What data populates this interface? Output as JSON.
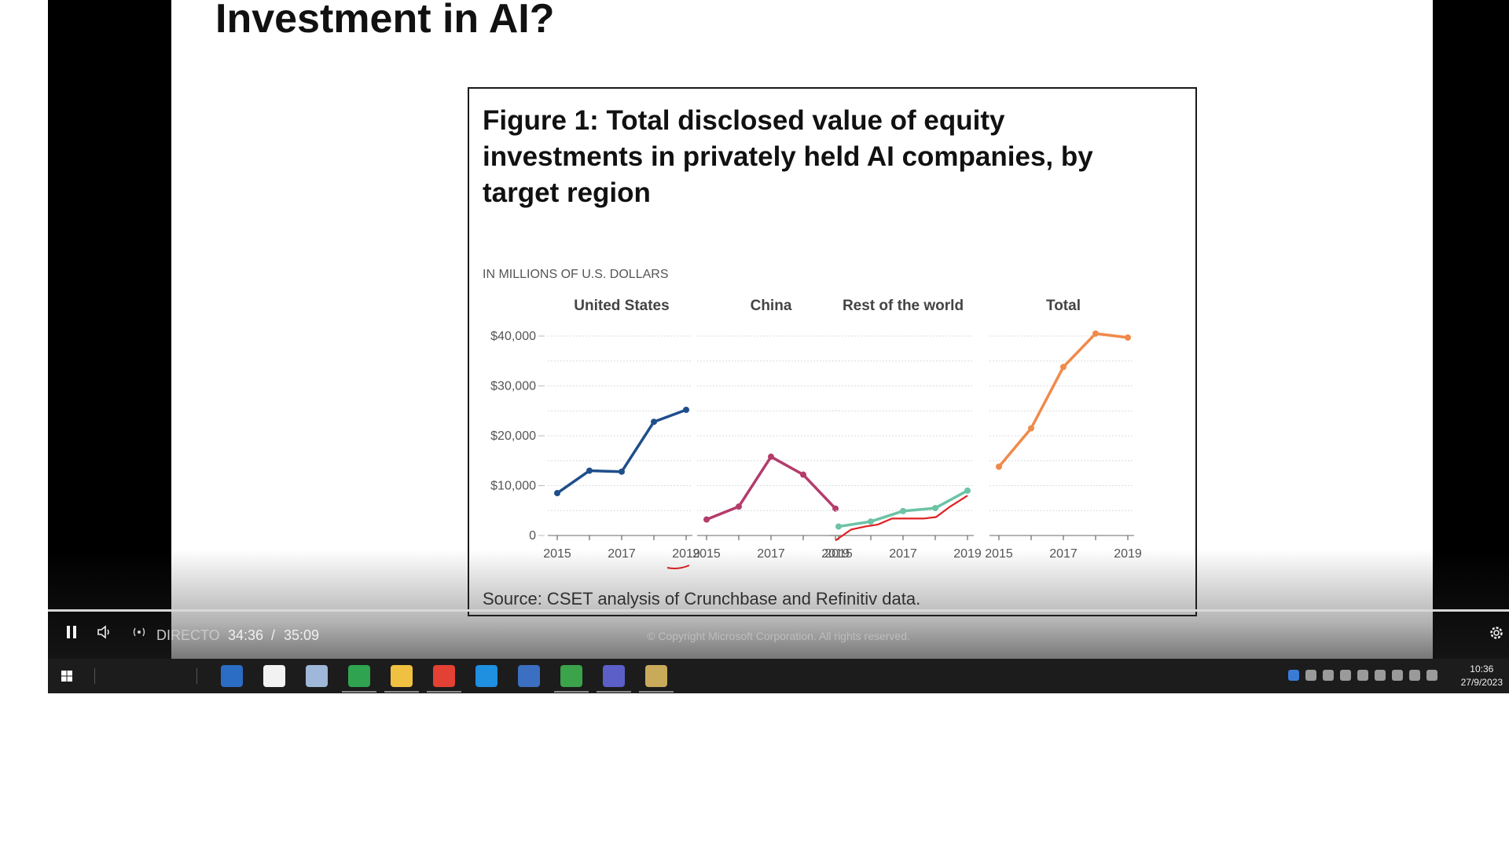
{
  "slide": {
    "title": "Investment in AI?",
    "figure_title": "Figure 1: Total disclosed value of equity investments in privately held AI companies, by target region",
    "source": "Source: CSET analysis of Crunchbase and Refinitiv data."
  },
  "chart_data": {
    "type": "line",
    "subtitle": "IN MILLIONS OF U.S. DOLLARS",
    "ylim": [
      0,
      40000
    ],
    "y_ticks": [
      "$40,000",
      "$30,000",
      "$20,000",
      "$10,000",
      "0"
    ],
    "y_tick_values": [
      40000,
      30000,
      20000,
      10000,
      0
    ],
    "x_tick_labels": [
      "2015",
      "2017",
      "2019"
    ],
    "x": [
      2015,
      2016,
      2017,
      2018,
      2019
    ],
    "grid": true,
    "panels": [
      {
        "name": "United States",
        "color": "#1f4e8c",
        "values": [
          8500,
          13000,
          12800,
          22800,
          25200
        ]
      },
      {
        "name": "China",
        "color": "#b43c6b",
        "values": [
          3200,
          5800,
          15800,
          12200,
          5400
        ]
      },
      {
        "name": "Rest of the world",
        "color": "#6cc3a5",
        "values": [
          1800,
          2800,
          4900,
          5500,
          9000
        ]
      },
      {
        "name": "Total",
        "color": "#f08a4b",
        "values": [
          13800,
          21500,
          33800,
          40500,
          39700
        ]
      }
    ],
    "annotation_color": "#e02020"
  },
  "footer": {
    "copyright": "© Copyright Microsoft Corporation. All rights reserved."
  },
  "player": {
    "live_label": "DIRECTO",
    "current_time": "34:36",
    "separator": "/",
    "duration": "35:09",
    "play_state": "playing"
  },
  "taskbar": {
    "apps": [
      {
        "name": "terminal",
        "color": "#2b6cc4"
      },
      {
        "name": "store",
        "color": "#f2f2f2"
      },
      {
        "name": "virtualbox",
        "color": "#9fb7d8"
      },
      {
        "name": "edge",
        "color": "#2fa34f"
      },
      {
        "name": "file-explorer",
        "color": "#f0c040"
      },
      {
        "name": "chrome",
        "color": "#e34133"
      },
      {
        "name": "vscode",
        "color": "#1f8fe0"
      },
      {
        "name": "remote-desktop",
        "color": "#3b6fc1"
      },
      {
        "name": "editor",
        "color": "#3ba34a"
      },
      {
        "name": "teams",
        "color": "#5b5fc7"
      },
      {
        "name": "tool",
        "color": "#c9a95a"
      }
    ],
    "clock_time": "10:36",
    "clock_date": "27/9/2023"
  }
}
